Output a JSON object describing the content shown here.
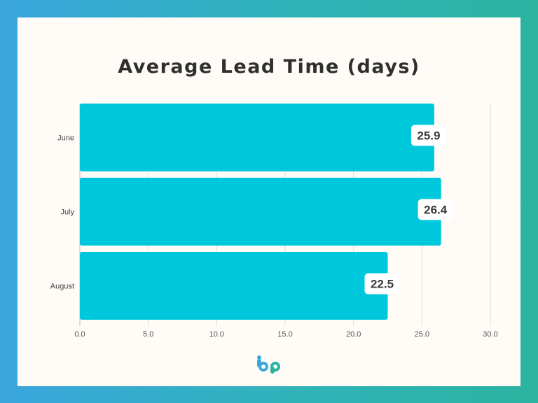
{
  "chart_data": {
    "type": "bar",
    "orientation": "horizontal",
    "title": "Average Lead Time (days)",
    "categories": [
      "June",
      "July",
      "August"
    ],
    "values": [
      25.9,
      26.4,
      22.5
    ],
    "value_labels": [
      "25.9",
      "26.4",
      "22.5"
    ],
    "x_ticks": [
      "0.0",
      "5.0",
      "10.0",
      "15.0",
      "20.0",
      "25.0",
      "30.0"
    ],
    "xlim": [
      0,
      30
    ],
    "xlabel": "",
    "ylabel": "",
    "grid": "vertical",
    "bar_color": "#00c8dc"
  },
  "brand": {
    "logo_icon": "bp-logo-icon",
    "colors": [
      "#3aa8dc",
      "#2bb3a0"
    ]
  }
}
